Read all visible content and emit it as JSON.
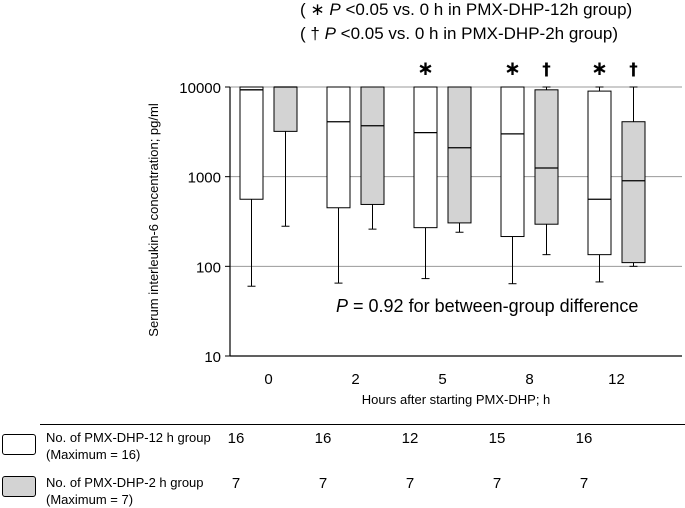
{
  "legend": {
    "line1": {
      "open": "( ",
      "symbol": "∗",
      "p": "P",
      "text": " <0.05 vs. 0 h in PMX-DHP-12h group)"
    },
    "line2": {
      "open": "( ",
      "symbol": "†",
      "p": "P",
      "text": " <0.05 vs. 0 h in PMX-DHP-2h group)"
    }
  },
  "p_note": {
    "p": "P",
    "text": " = 0.92 for between-group difference"
  },
  "chart_data": {
    "type": "boxplot",
    "title": "",
    "xlabel": "Hours after starting PMX-DHP; h",
    "ylabel": "Serum interleukin-6 concentration; pg/ml",
    "yscale": "log",
    "ylim": [
      10,
      10000
    ],
    "yticks": [
      10,
      100,
      1000,
      10000
    ],
    "ytick_labels": [
      "10",
      "100",
      "1000",
      "10000"
    ],
    "categories": [
      "0",
      "2",
      "5",
      "8",
      "12"
    ],
    "series": [
      {
        "name": "PMX-DHP-12 h group",
        "fill": "#ffffff",
        "boxes": [
          {
            "whisker_low": 60,
            "q1": 560,
            "median": 9300,
            "q3": 10000,
            "whisker_high": 10000,
            "mark": ""
          },
          {
            "whisker_low": 65,
            "q1": 450,
            "median": 4100,
            "q3": 10000,
            "whisker_high": 10000,
            "mark": ""
          },
          {
            "whisker_low": 73,
            "q1": 270,
            "median": 3100,
            "q3": 10000,
            "whisker_high": 10000,
            "mark": "∗"
          },
          {
            "whisker_low": 64,
            "q1": 215,
            "median": 3000,
            "q3": 10000,
            "whisker_high": 10000,
            "mark": "∗"
          },
          {
            "whisker_low": 67,
            "q1": 135,
            "median": 560,
            "q3": 9000,
            "whisker_high": 10000,
            "mark": "∗"
          }
        ]
      },
      {
        "name": "PMX-DHP-2 h group",
        "fill": "#d3d3d3",
        "boxes": [
          {
            "whisker_low": 280,
            "q1": 3200,
            "median": 10000,
            "q3": 10000,
            "whisker_high": 10000,
            "mark": ""
          },
          {
            "whisker_low": 260,
            "q1": 490,
            "median": 3700,
            "q3": 10000,
            "whisker_high": 10000,
            "mark": ""
          },
          {
            "whisker_low": 240,
            "q1": 305,
            "median": 2100,
            "q3": 10000,
            "whisker_high": 10000,
            "mark": ""
          },
          {
            "whisker_low": 135,
            "q1": 295,
            "median": 1250,
            "q3": 9300,
            "whisker_high": 10000,
            "mark": "†"
          },
          {
            "whisker_low": 100,
            "q1": 110,
            "median": 900,
            "q3": 4100,
            "whisker_high": 10000,
            "mark": "†"
          }
        ]
      }
    ]
  },
  "table": {
    "rows": [
      {
        "label_line1": "No. of PMX-DHP-12 h group",
        "label_line2": "(Maximum = 16)",
        "fill": "#ffffff",
        "counts": [
          "16",
          "16",
          "12",
          "15",
          "16"
        ]
      },
      {
        "label_line1": "No. of PMX-DHP-2 h group",
        "label_line2": "(Maximum = 7)",
        "fill": "#d3d3d3",
        "counts": [
          "7",
          "7",
          "7",
          "7",
          "7"
        ]
      }
    ]
  }
}
